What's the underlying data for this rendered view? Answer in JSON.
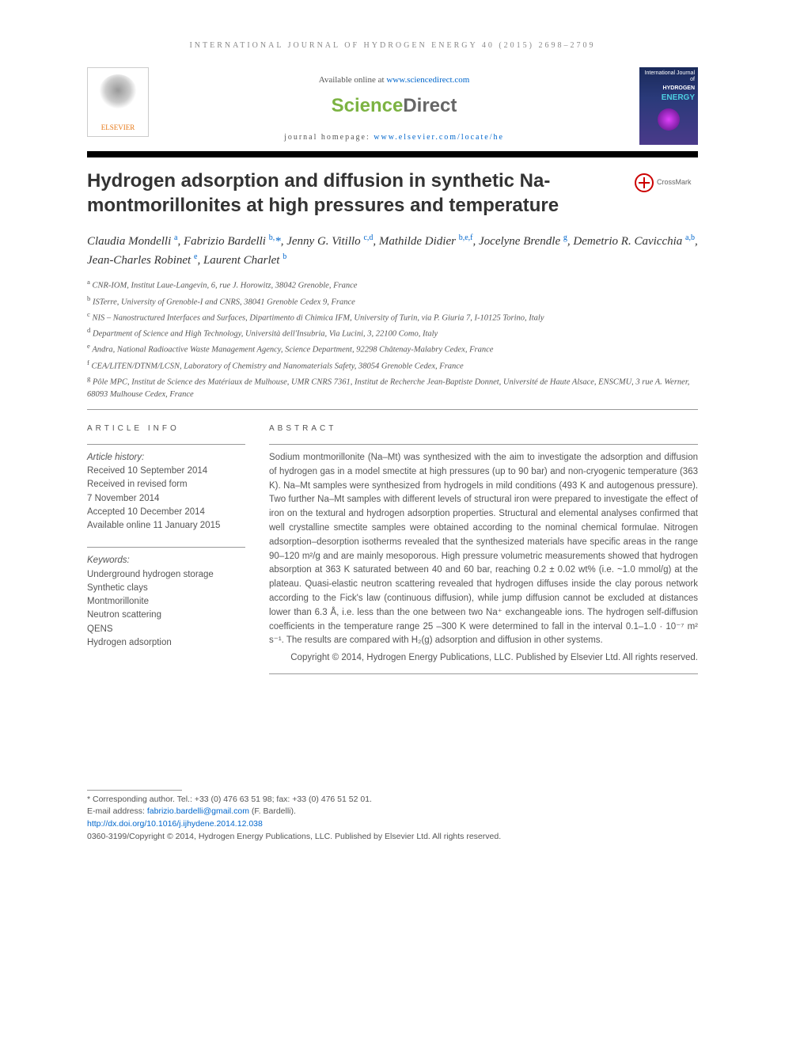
{
  "header": {
    "journal_line": "INTERNATIONAL JOURNAL OF HYDROGEN ENERGY 40 (2015) 2698–2709",
    "available_prefix": "Available online at ",
    "available_url": "www.sciencedirect.com",
    "sd_sci": "Science",
    "sd_dir": "Direct",
    "homepage_prefix": "journal homepage: ",
    "homepage_url": "www.elsevier.com/locate/he",
    "elsevier_label": "ELSEVIER",
    "cover_line1": "International Journal of",
    "cover_line2": "HYDROGEN",
    "cover_line3": "ENERGY",
    "crossmark_label": "CrossMark"
  },
  "article": {
    "title": "Hydrogen adsorption and diffusion in synthetic Na-montmorillonites at high pressures and temperature",
    "authors_html": "Claudia Mondelli <sup>a</sup>, Fabrizio Bardelli <sup>b,</sup><span class='corr'>*</span>, Jenny G. Vitillo <sup>c,d</sup>, Mathilde Didier <sup>b,e,f</sup>, Jocelyne Brendle <sup>g</sup>, Demetrio R. Cavicchia <sup>a,b</sup>, Jean-Charles Robinet <sup>e</sup>, Laurent Charlet <sup>b</sup>",
    "affiliations": [
      "<sup>a</sup> CNR-IOM, Institut Laue-Langevin, 6, rue J. Horowitz, 38042 Grenoble, France",
      "<sup>b</sup> ISTerre, University of Grenoble-I and CNRS, 38041 Grenoble Cedex 9, France",
      "<sup>c</sup> NIS – Nanostructured Interfaces and Surfaces, Dipartimento di Chimica IFM, University of Turin, via P. Giuria 7, I-10125 Torino, Italy",
      "<sup>d</sup> Department of Science and High Technology, Università dell'Insubria, Via Lucini, 3, 22100 Como, Italy",
      "<sup>e</sup> Andra, National Radioactive Waste Management Agency, Science Department, 92298 Châtenay-Malabry Cedex, France",
      "<sup>f</sup> CEA/LITEN/DTNM/LCSN, Laboratory of Chemistry and Nanomaterials Safety, 38054 Grenoble Cedex, France",
      "<sup>g</sup> Pôle MPC, Institut de Science des Matériaux de Mulhouse, UMR CNRS 7361, Institut de Recherche Jean-Baptiste Donnet, Université de Haute Alsace, ENSCMU, 3 rue A. Werner, 68093 Mulhouse Cedex, France"
    ]
  },
  "info": {
    "heading": "ARTICLE INFO",
    "history_label": "Article history:",
    "history": [
      "Received 10 September 2014",
      "Received in revised form",
      "7 November 2014",
      "Accepted 10 December 2014",
      "Available online 11 January 2015"
    ],
    "keywords_label": "Keywords:",
    "keywords": [
      "Underground hydrogen storage",
      "Synthetic clays",
      "Montmorillonite",
      "Neutron scattering",
      "QENS",
      "Hydrogen adsorption"
    ]
  },
  "abstract": {
    "heading": "ABSTRACT",
    "text": "Sodium montmorillonite (Na–Mt) was synthesized with the aim to investigate the adsorption and diffusion of hydrogen gas in a model smectite at high pressures (up to 90 bar) and non-cryogenic temperature (363 K). Na–Mt samples were synthesized from hydrogels in mild conditions (493 K and autogenous pressure). Two further Na–Mt samples with different levels of structural iron were prepared to investigate the effect of iron on the textural and hydrogen adsorption properties. Structural and elemental analyses confirmed that well crystalline smectite samples were obtained according to the nominal chemical formulae. Nitrogen adsorption–desorption isotherms revealed that the synthesized materials have specific areas in the range 90–120 m²/g and are mainly mesoporous. High pressure volumetric measurements showed that hydrogen absorption at 363 K saturated between 40 and 60 bar, reaching 0.2 ± 0.02 wt% (i.e. ~1.0 mmol/g) at the plateau. Quasi-elastic neutron scattering revealed that hydrogen diffuses inside the clay porous network according to the Fick's law (continuous diffusion), while jump diffusion cannot be excluded at distances lower than 6.3 Å, i.e. less than the one between two Na⁺ exchangeable ions. The hydrogen self-diffusion coefficients in the temperature range 25 –300 K were determined to fall in the interval 0.1–1.0 · 10⁻⁷ m² s⁻¹. The results are compared with H₂(g) adsorption and diffusion in other systems.",
    "copyright": "Copyright © 2014, Hydrogen Energy Publications, LLC. Published by Elsevier Ltd. All rights reserved."
  },
  "footer": {
    "corresponding": "* Corresponding author. Tel.: +33 (0) 476 63 51 98; fax: +33 (0) 476 51 52 01.",
    "email_label": "E-mail address: ",
    "email": "fabrizio.bardelli@gmail.com",
    "email_suffix": " (F. Bardelli).",
    "doi": "http://dx.doi.org/10.1016/j.ijhydene.2014.12.038",
    "issn_line": "0360-3199/Copyright © 2014, Hydrogen Energy Publications, LLC. Published by Elsevier Ltd. All rights reserved."
  }
}
